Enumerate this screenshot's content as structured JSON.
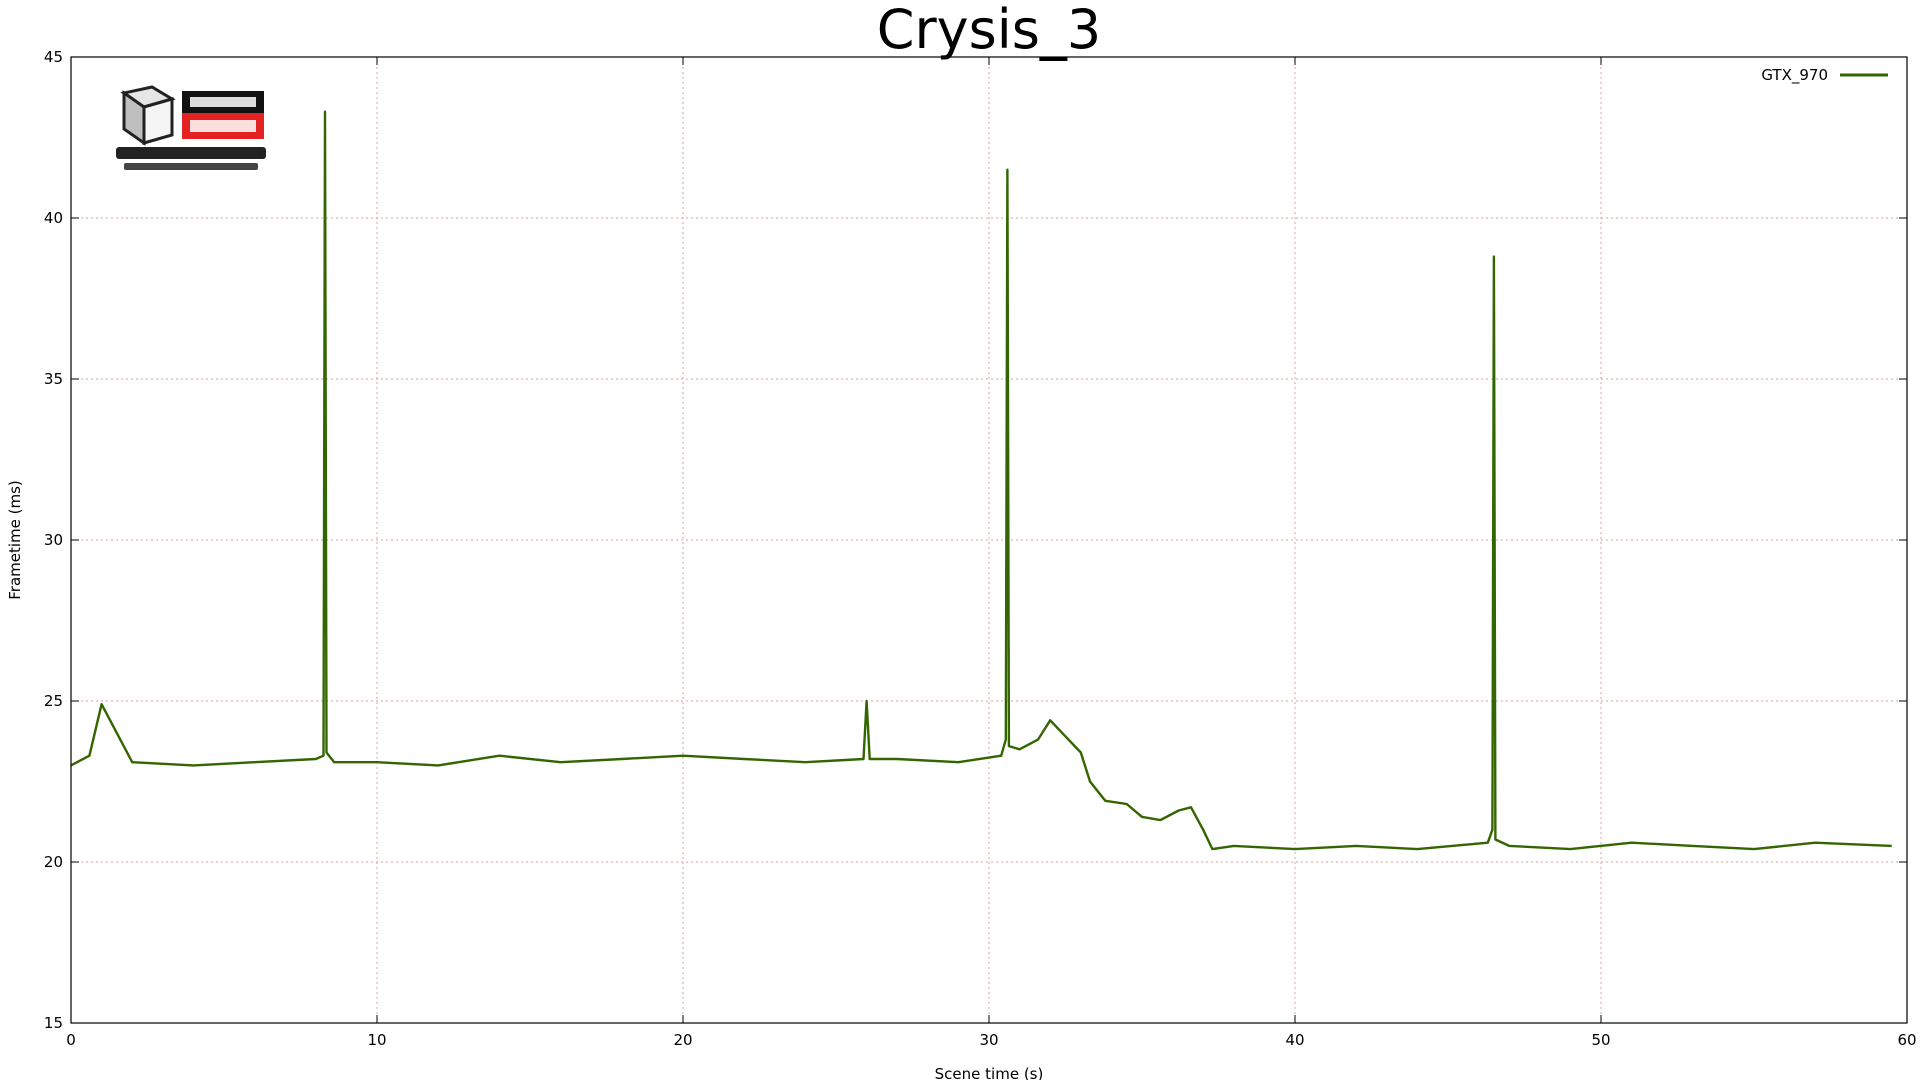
{
  "chart_data": {
    "type": "line",
    "title": "Crysis_3",
    "xlabel": "Scene time (s)",
    "ylabel": "Frametime (ms)",
    "xlim": [
      0,
      60
    ],
    "ylim": [
      15,
      45
    ],
    "xticks": [
      0,
      10,
      20,
      30,
      40,
      50,
      60
    ],
    "yticks": [
      15,
      20,
      25,
      30,
      35,
      40,
      45
    ],
    "grid": true,
    "legend_position": "top-right",
    "series": [
      {
        "name": "GTX_970",
        "color": "#336600",
        "x": [
          0,
          0.6,
          1.0,
          2,
          4,
          6,
          8,
          8.25,
          8.3,
          8.35,
          8.6,
          10,
          12,
          14,
          16,
          18,
          20,
          22,
          24,
          25.9,
          26.0,
          26.1,
          27,
          29,
          30.4,
          30.55,
          30.6,
          30.65,
          31,
          31.6,
          32.0,
          32.5,
          33,
          33.3,
          33.8,
          34.5,
          35,
          35.6,
          36.2,
          36.6,
          37,
          37.3,
          38,
          40,
          42,
          44,
          46.3,
          46.45,
          46.5,
          46.55,
          47,
          49,
          51,
          53,
          55,
          57,
          59.5
        ],
        "y": [
          23.0,
          23.3,
          24.9,
          23.1,
          23.0,
          23.1,
          23.2,
          23.3,
          43.3,
          23.4,
          23.1,
          23.1,
          23.0,
          23.3,
          23.1,
          23.2,
          23.3,
          23.2,
          23.1,
          23.2,
          25.0,
          23.2,
          23.2,
          23.1,
          23.3,
          23.8,
          41.5,
          23.6,
          23.5,
          23.8,
          24.4,
          23.9,
          23.4,
          22.5,
          21.9,
          21.8,
          21.4,
          21.3,
          21.6,
          21.7,
          21.0,
          20.4,
          20.5,
          20.4,
          20.5,
          20.4,
          20.6,
          21.0,
          38.8,
          20.7,
          20.5,
          20.4,
          20.6,
          20.5,
          20.4,
          20.6,
          20.5
        ]
      }
    ]
  }
}
